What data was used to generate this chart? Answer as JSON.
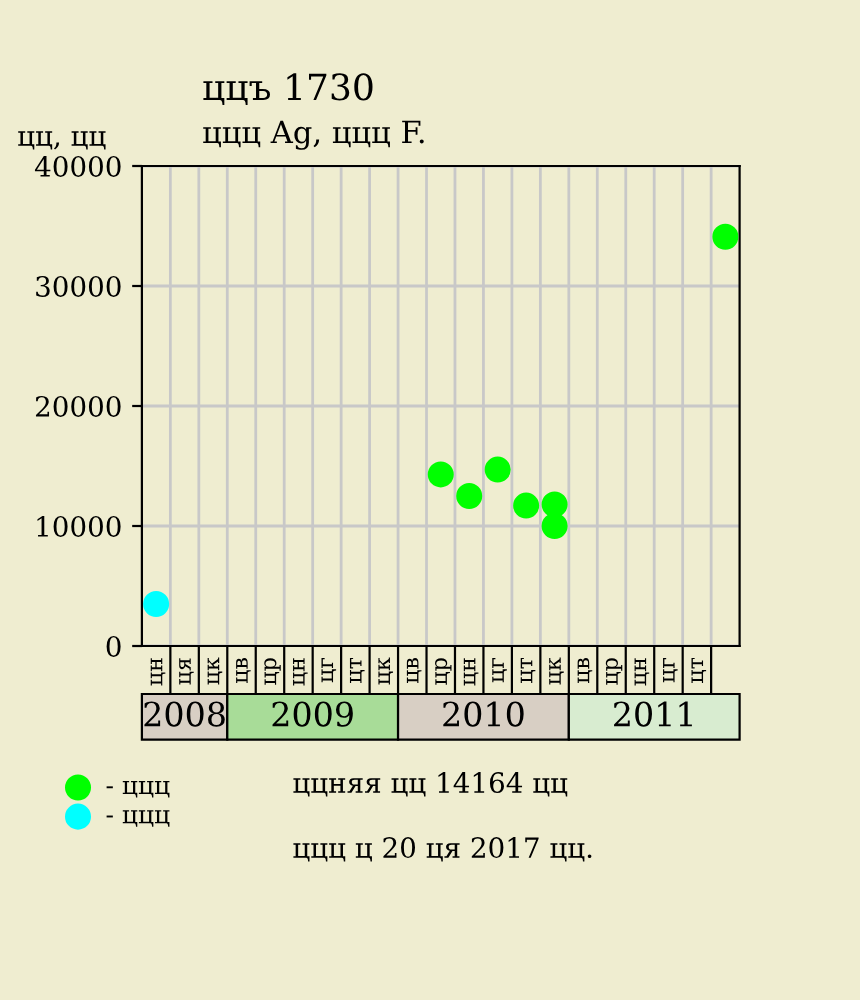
{
  "chart_data": {
    "type": "scatter",
    "title": "ццъ 1730",
    "subtitle": "ццц Ag, ццц F.",
    "ylabel": "цц, цц",
    "categories": [
      "цн",
      "ця",
      "цк",
      "цв",
      "цр",
      "цн",
      "цг",
      "цт",
      "цк",
      "цв",
      "цр",
      "цн",
      "цг",
      "цт",
      "цк",
      "цв",
      "цр",
      "цн",
      "цг",
      "цт",
      null
    ],
    "ylim": [
      0,
      40000
    ],
    "yticks": [
      0,
      10000,
      20000,
      30000,
      40000
    ],
    "series": [
      {
        "name": "- ццц",
        "color": "#00ff00",
        "values": [
          null,
          null,
          null,
          null,
          null,
          null,
          null,
          null,
          null,
          null,
          14300,
          12500,
          14700,
          11700,
          11800,
          null,
          null,
          null,
          null,
          null,
          34100
        ]
      },
      {
        "color": "#00ff00",
        "values": [
          null,
          null,
          null,
          null,
          null,
          null,
          null,
          null,
          null,
          null,
          null,
          null,
          null,
          null,
          10000,
          null,
          null,
          null,
          null,
          null,
          null
        ]
      },
      {
        "name": "- ццц",
        "color": "#00ffff",
        "values": [
          3500,
          null,
          null,
          null,
          null,
          null,
          null,
          null,
          null,
          null,
          null,
          null,
          null,
          null,
          null,
          null,
          null,
          null,
          null,
          null,
          null
        ]
      }
    ],
    "marker": "circle",
    "grid": true,
    "legend": "bottom left",
    "annotations": [
      "2008",
      "2009",
      "2010",
      "2011",
      "ццняя цц 14164 цц",
      "ццц ц 20 ця 2017 цц."
    ]
  }
}
